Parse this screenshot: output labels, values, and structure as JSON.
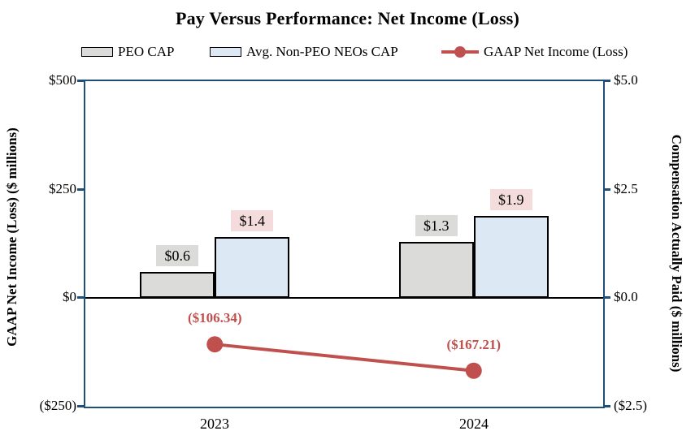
{
  "title": "Pay Versus Performance: Net Income (Loss)",
  "x_labels": [
    "2023",
    "2024"
  ],
  "chart_data": {
    "type": "bar+line",
    "title": "Pay Versus Performance: Net Income (Loss)",
    "categories": [
      "2023",
      "2024"
    ],
    "series": [
      {
        "name": "PEO CAP",
        "type": "bar",
        "axis": "right",
        "values": [
          0.6,
          1.3
        ],
        "data_labels": [
          "$0.6",
          "$1.3"
        ],
        "fill": "#DBDBD9",
        "border": "#000000",
        "label_bg": "#DBDBD9"
      },
      {
        "name": "Avg. Non-PEO NEOs CAP",
        "type": "bar",
        "axis": "right",
        "values": [
          1.4,
          1.9
        ],
        "data_labels": [
          "$1.4",
          "$1.9"
        ],
        "fill": "#DCE8F4",
        "border": "#000000",
        "label_bg": "#F3DCDB"
      },
      {
        "name": "GAAP Net Income (Loss)",
        "type": "line",
        "axis": "left",
        "values": [
          -106.34,
          -167.21
        ],
        "data_labels": [
          "($106.34)",
          "($167.21)"
        ],
        "color": "#C0504D"
      }
    ],
    "left_axis": {
      "title": "GAAP Net Income (Loss) ($ millions)",
      "range": [
        -250,
        500
      ],
      "ticks": [
        {
          "label": "$500",
          "value": 500
        },
        {
          "label": "$250",
          "value": 250
        },
        {
          "label": "$0",
          "value": 0
        },
        {
          "label": "($250)",
          "value": -250
        }
      ]
    },
    "right_axis": {
      "title": "Compensation Actually Paid ($ millions)",
      "range": [
        -2.5,
        5
      ],
      "ticks": [
        {
          "label": "$5.0",
          "value": 5
        },
        {
          "label": "$2.5",
          "value": 2.5
        },
        {
          "label": "$0.0",
          "value": 0
        },
        {
          "label": "($2.5)",
          "value": -2.5
        }
      ]
    },
    "legend_position": "top",
    "grid": false,
    "frame_color": "#1F4E79",
    "zero_line_color": "#000000"
  }
}
